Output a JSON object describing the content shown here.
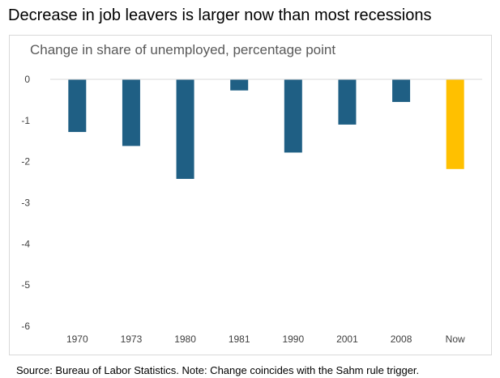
{
  "title": "Decrease in job leavers is larger now than most recessions",
  "source": "Source: Bureau of Labor Statistics. Note: Change coincides with the Sahm rule trigger.",
  "chart_data": {
    "type": "bar",
    "subtitle": "Change in share of unemployed, percentage point",
    "categories": [
      "1970",
      "1973",
      "1980",
      "1981",
      "1990",
      "2001",
      "2008",
      "Now"
    ],
    "values": [
      -1.28,
      -1.62,
      -2.42,
      -0.27,
      -1.78,
      -1.1,
      -0.55,
      -2.18
    ],
    "colors": [
      "#1f5f84",
      "#1f5f84",
      "#1f5f84",
      "#1f5f84",
      "#1f5f84",
      "#1f5f84",
      "#1f5f84",
      "#ffc000"
    ],
    "ylim": [
      -6,
      0
    ],
    "yticks": [
      "0",
      "-1",
      "-2",
      "-3",
      "-4",
      "-5",
      "-6"
    ],
    "ytick_values": [
      0,
      -1,
      -2,
      -3,
      -4,
      -5,
      -6
    ],
    "grid": false,
    "legend": "none",
    "xlabel": "",
    "ylabel": ""
  }
}
